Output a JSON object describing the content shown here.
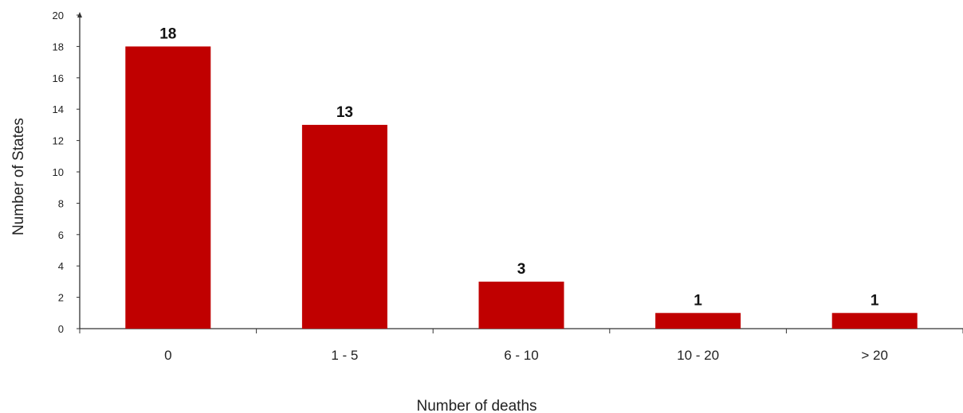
{
  "chart_data": {
    "type": "bar",
    "categories": [
      "0",
      "1 - 5",
      "6 - 10",
      "10 - 20",
      "> 20"
    ],
    "values": [
      18,
      13,
      3,
      1,
      1
    ],
    "data_labels": [
      "18",
      "13",
      "3",
      "1",
      "1"
    ],
    "xlabel": "Number of deaths",
    "ylabel": "Number of States",
    "ylim": [
      0,
      20
    ],
    "yticks": [
      0,
      2,
      4,
      6,
      8,
      10,
      12,
      14,
      16,
      18,
      20
    ],
    "bar_color": "#c00000",
    "grid": false,
    "legend": "none"
  }
}
